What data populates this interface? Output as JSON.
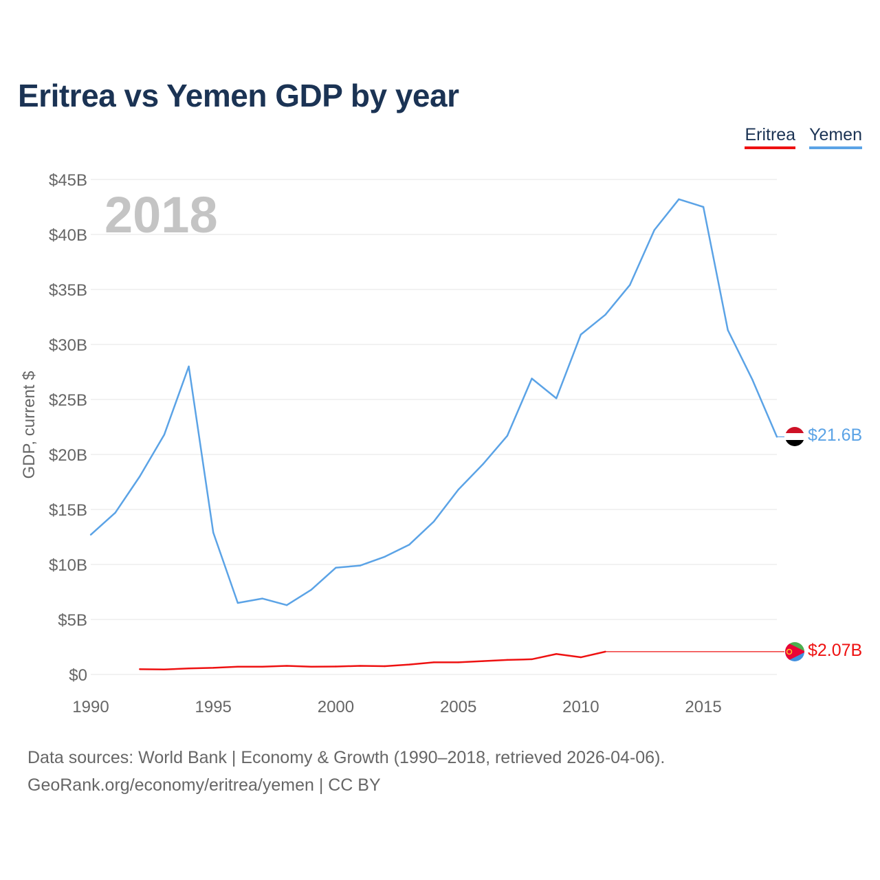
{
  "title": "Eritrea vs Yemen GDP by year",
  "chart_data": {
    "type": "line",
    "title": "Eritrea vs Yemen GDP by year",
    "xlabel": "",
    "ylabel": "GDP, current $",
    "xlim": [
      1990,
      2018
    ],
    "ylim": [
      0,
      45
    ],
    "y_unit": "billions of current US$",
    "x_ticks": [
      "1990",
      "1995",
      "2000",
      "2005",
      "2010",
      "2015"
    ],
    "y_ticks": [
      "$0",
      "$5B",
      "$10B",
      "$15B",
      "$20B",
      "$25B",
      "$30B",
      "$35B",
      "$40B",
      "$45B"
    ],
    "year_watermark": "2018",
    "grid": true,
    "legend_position": "top-right",
    "series": [
      {
        "name": "Eritrea",
        "color": "#ee1111",
        "flag_icon": "eritrea-flag-icon",
        "end_label": "$2.07B",
        "end_value": 2.07,
        "x": [
          1992,
          1993,
          1994,
          1995,
          1996,
          1997,
          1998,
          1999,
          2000,
          2001,
          2002,
          2003,
          2004,
          2005,
          2006,
          2007,
          2008,
          2009,
          2010,
          2011
        ],
        "values": [
          0.48,
          0.45,
          0.55,
          0.6,
          0.7,
          0.7,
          0.78,
          0.7,
          0.72,
          0.78,
          0.75,
          0.9,
          1.1,
          1.1,
          1.21,
          1.32,
          1.38,
          1.86,
          1.56,
          2.07
        ]
      },
      {
        "name": "Yemen",
        "color": "#5ba3e6",
        "flag_icon": "yemen-flag-icon",
        "end_label": "$21.6B",
        "end_value": 21.6,
        "x": [
          1990,
          1991,
          1992,
          1993,
          1994,
          1995,
          1996,
          1997,
          1998,
          1999,
          2000,
          2001,
          2002,
          2003,
          2004,
          2005,
          2006,
          2007,
          2008,
          2009,
          2010,
          2011,
          2012,
          2013,
          2014,
          2015,
          2016,
          2017,
          2018
        ],
        "values": [
          12.7,
          14.7,
          18.0,
          21.8,
          28.0,
          12.9,
          6.5,
          6.9,
          6.3,
          7.7,
          9.7,
          9.9,
          10.7,
          11.8,
          13.9,
          16.8,
          19.1,
          21.7,
          26.9,
          25.1,
          30.9,
          32.7,
          35.4,
          40.4,
          43.2,
          42.5,
          31.3,
          26.8,
          21.6
        ]
      }
    ]
  },
  "legend": {
    "eritrea": "Eritrea",
    "yemen": "Yemen"
  },
  "source": {
    "line1": "Data sources: World Bank | Economy & Growth (1990–2018, retrieved 2026-04-06).",
    "line2": "GeoRank.org/economy/eritrea/yemen | CC BY"
  }
}
